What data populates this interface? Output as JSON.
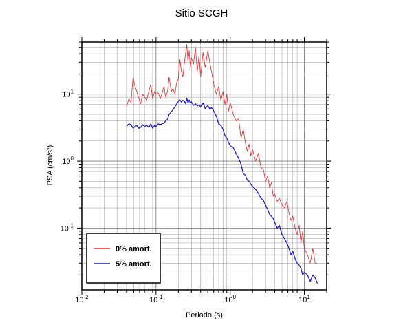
{
  "chart_data": {
    "type": "line",
    "title": "Sitio SCGH",
    "xlabel": "Periodo (s)",
    "ylabel": "PSA (cm/s²)",
    "xscale": "log",
    "yscale": "log",
    "xlim": [
      0.01,
      20
    ],
    "ylim": [
      0.012,
      60
    ],
    "grid": true,
    "legend_position": "bottom-left",
    "x_ticks": [
      {
        "base": "10",
        "exp": "-2"
      },
      {
        "base": "10",
        "exp": "-1"
      },
      {
        "base": "10",
        "exp": "0"
      },
      {
        "base": "10",
        "exp": "1"
      }
    ],
    "y_ticks": [
      {
        "base": "10",
        "exp": "-1"
      },
      {
        "base": "10",
        "exp": "0"
      },
      {
        "base": "10",
        "exp": "1"
      }
    ],
    "series": [
      {
        "name": "0% amort.",
        "color": "#e8262a",
        "stroke_width": 0.8,
        "x": [
          0.04,
          0.043,
          0.046,
          0.049,
          0.052,
          0.055,
          0.058,
          0.062,
          0.066,
          0.07,
          0.075,
          0.08,
          0.085,
          0.09,
          0.096,
          0.1,
          0.107,
          0.114,
          0.12,
          0.128,
          0.135,
          0.143,
          0.15,
          0.16,
          0.17,
          0.18,
          0.19,
          0.2,
          0.21,
          0.22,
          0.23,
          0.24,
          0.25,
          0.26,
          0.27,
          0.28,
          0.29,
          0.3,
          0.32,
          0.34,
          0.36,
          0.38,
          0.4,
          0.43,
          0.46,
          0.5,
          0.53,
          0.56,
          0.6,
          0.65,
          0.7,
          0.75,
          0.8,
          0.85,
          0.9,
          0.95,
          1.0,
          1.1,
          1.2,
          1.3,
          1.4,
          1.5,
          1.6,
          1.7,
          1.8,
          1.9,
          2.0,
          2.2,
          2.4,
          2.6,
          2.8,
          3.0,
          3.2,
          3.4,
          3.6,
          3.8,
          4.0,
          4.3,
          4.6,
          5.0,
          5.4,
          5.8,
          6.2,
          6.6,
          7.0,
          7.5,
          8.0,
          8.5,
          9.0,
          9.5,
          10.0,
          11.0,
          12.0,
          13.0,
          14.0,
          15.0
        ],
        "y": [
          6.5,
          8.5,
          7.5,
          18,
          13,
          11,
          9,
          7.2,
          10,
          9,
          8.2,
          11,
          14,
          8.5,
          11,
          10,
          10.5,
          8.5,
          10,
          13,
          9,
          11,
          18,
          11,
          12,
          10,
          15,
          17,
          33,
          22,
          18,
          28,
          40,
          55,
          30,
          45,
          25,
          35,
          28,
          50,
          22,
          38,
          18,
          42,
          25,
          45,
          30,
          22,
          14,
          10,
          13,
          8,
          11,
          7,
          10,
          5.6,
          7.5,
          5,
          4,
          4.3,
          2.2,
          3,
          1.9,
          1.4,
          1.8,
          1.2,
          1.5,
          1,
          1.3,
          0.8,
          0.75,
          0.5,
          0.6,
          0.4,
          0.48,
          0.3,
          0.32,
          0.25,
          0.28,
          0.22,
          0.2,
          0.25,
          0.17,
          0.13,
          0.15,
          0.1,
          0.08,
          0.11,
          0.06,
          0.09,
          0.05,
          0.04,
          0.03,
          0.05,
          0.03,
          0.03
        ]
      },
      {
        "name": "5% amort.",
        "color": "#1a1acc",
        "stroke_width": 1.3,
        "x": [
          0.04,
          0.043,
          0.046,
          0.049,
          0.052,
          0.055,
          0.058,
          0.062,
          0.066,
          0.07,
          0.075,
          0.08,
          0.085,
          0.09,
          0.096,
          0.1,
          0.107,
          0.114,
          0.12,
          0.128,
          0.135,
          0.143,
          0.15,
          0.16,
          0.17,
          0.18,
          0.19,
          0.2,
          0.21,
          0.22,
          0.23,
          0.24,
          0.25,
          0.26,
          0.27,
          0.28,
          0.29,
          0.3,
          0.32,
          0.34,
          0.36,
          0.38,
          0.4,
          0.43,
          0.46,
          0.5,
          0.53,
          0.56,
          0.6,
          0.65,
          0.7,
          0.75,
          0.8,
          0.85,
          0.9,
          0.95,
          1.0,
          1.1,
          1.2,
          1.3,
          1.4,
          1.5,
          1.6,
          1.7,
          1.8,
          1.9,
          2.0,
          2.2,
          2.4,
          2.6,
          2.8,
          3.0,
          3.2,
          3.4,
          3.6,
          3.8,
          4.0,
          4.3,
          4.6,
          5.0,
          5.4,
          5.8,
          6.2,
          6.6,
          7.0,
          7.5,
          8.0,
          8.5,
          9.0,
          9.5,
          10.0,
          11.0,
          12.0,
          13.0,
          14.0,
          15.0
        ],
        "y": [
          3.3,
          3.6,
          3.5,
          3.1,
          3.3,
          3.4,
          3.1,
          3.2,
          3.5,
          3.3,
          3.4,
          3.2,
          3.6,
          3.1,
          3.4,
          3.3,
          3.6,
          3.5,
          3.6,
          3.7,
          4,
          4.2,
          5,
          5.4,
          5.9,
          6.5,
          7.2,
          7.8,
          8.2,
          7.6,
          8.1,
          7.9,
          7.2,
          8.7,
          7.4,
          8.2,
          7.4,
          7.7,
          6.8,
          7.2,
          6.7,
          6.9,
          6.5,
          7.4,
          6.1,
          6.8,
          6,
          6.3,
          5.6,
          4.7,
          3.6,
          3.4,
          3,
          2.4,
          2.2,
          1.9,
          1.7,
          1.6,
          1.3,
          1.1,
          0.9,
          0.65,
          0.62,
          0.52,
          0.5,
          0.45,
          0.42,
          0.38,
          0.33,
          0.28,
          0.26,
          0.22,
          0.19,
          0.16,
          0.15,
          0.14,
          0.12,
          0.1,
          0.11,
          0.08,
          0.07,
          0.06,
          0.05,
          0.04,
          0.045,
          0.035,
          0.03,
          0.028,
          0.025,
          0.02,
          0.022,
          0.02,
          0.016,
          0.02,
          0.018,
          0.015
        ]
      }
    ]
  }
}
